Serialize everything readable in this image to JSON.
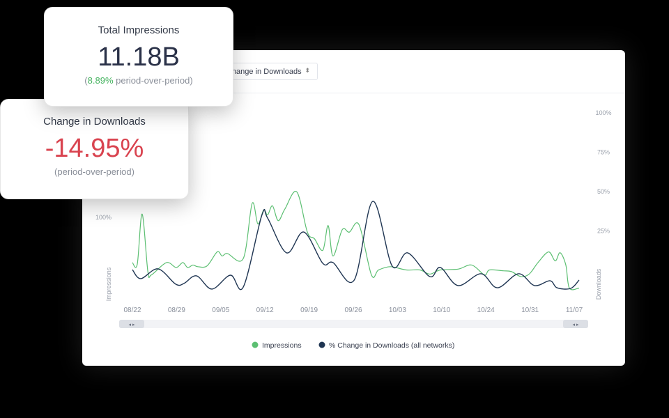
{
  "cards": [
    {
      "title": "Total Impressions",
      "value": "11.18B",
      "change": "8.89%",
      "suffix": " period-over-period)",
      "prefix": "("
    },
    {
      "title": "Change in Downloads",
      "value": "-14.95%",
      "subtitle": "(period-over-period)"
    }
  ],
  "dropdown": {
    "label": "Change in Downloads"
  },
  "colors": {
    "impressions": "#5cbf72",
    "downloads": "#1f3552",
    "negative": "#d9434f",
    "positive": "#45b35f"
  },
  "chart_data": {
    "type": "line",
    "x_ticks": [
      "08/22",
      "08/29",
      "09/05",
      "09/12",
      "09/19",
      "09/26",
      "10/03",
      "10/10",
      "10/24",
      "10/31",
      "11/07"
    ],
    "left_axis": {
      "label": "Impressions",
      "ticks": [
        "100%"
      ]
    },
    "right_axis": {
      "label": "Downloads",
      "ticks": [
        "100%",
        "75%",
        "50%",
        "25%"
      ],
      "ylim": [
        0,
        100
      ]
    },
    "legend": {
      "position": "bottom"
    },
    "grid": false,
    "series": [
      {
        "name": "Impressions",
        "axis": "left",
        "points": [
          [
            0,
            45
          ],
          [
            0.11,
            43
          ],
          [
            0.22,
            104
          ],
          [
            0.35,
            34
          ],
          [
            0.43,
            30
          ],
          [
            0.77,
            45
          ],
          [
            0.99,
            39
          ],
          [
            1.14,
            45
          ],
          [
            1.25,
            39
          ],
          [
            1.37,
            42
          ],
          [
            1.48,
            40
          ],
          [
            1.69,
            41
          ],
          [
            1.92,
            58
          ],
          [
            2.03,
            53
          ],
          [
            2.15,
            56
          ],
          [
            2.51,
            50
          ],
          [
            2.71,
            117
          ],
          [
            2.84,
            92
          ],
          [
            2.97,
            109
          ],
          [
            3.06,
            103
          ],
          [
            3.17,
            114
          ],
          [
            3.3,
            96
          ],
          [
            3.45,
            110
          ],
          [
            3.72,
            131
          ],
          [
            3.96,
            82
          ],
          [
            4.12,
            74
          ],
          [
            4.31,
            60
          ],
          [
            4.43,
            90
          ],
          [
            4.54,
            53
          ],
          [
            4.75,
            85
          ],
          [
            4.91,
            82
          ],
          [
            5.13,
            91
          ],
          [
            5.41,
            30
          ],
          [
            5.57,
            36
          ],
          [
            5.84,
            40
          ],
          [
            6.2,
            36
          ],
          [
            6.51,
            36
          ],
          [
            6.73,
            31
          ],
          [
            6.97,
            36
          ],
          [
            7.37,
            37
          ],
          [
            7.68,
            42
          ],
          [
            7.97,
            30
          ],
          [
            8.08,
            36
          ],
          [
            8.39,
            35
          ],
          [
            8.58,
            34
          ],
          [
            8.79,
            28
          ],
          [
            8.98,
            31
          ],
          [
            9.18,
            45
          ],
          [
            9.42,
            58
          ],
          [
            9.57,
            47
          ],
          [
            9.68,
            57
          ],
          [
            9.81,
            42
          ],
          [
            9.89,
            14
          ],
          [
            10.11,
            14
          ]
        ]
      },
      {
        "name": "% Change in Downloads (all networks)",
        "axis": "right",
        "points": [
          [
            0,
            0.4
          ],
          [
            0.19,
            -5.3
          ],
          [
            0.58,
            0.9
          ],
          [
            0.98,
            -8.8
          ],
          [
            1.17,
            -8.3
          ],
          [
            1.45,
            -3.5
          ],
          [
            1.8,
            -11.9
          ],
          [
            2.22,
            -3.1
          ],
          [
            2.51,
            -10.6
          ],
          [
            2.93,
            35
          ],
          [
            3.06,
            33.2
          ],
          [
            3.49,
            11.1
          ],
          [
            3.88,
            24.3
          ],
          [
            4.31,
            4.4
          ],
          [
            4.54,
            4.9
          ],
          [
            5.02,
            -6.2
          ],
          [
            5.44,
            43.8
          ],
          [
            5.88,
            2.7
          ],
          [
            6.23,
            11.1
          ],
          [
            6.73,
            -4
          ],
          [
            6.97,
            1.8
          ],
          [
            7.37,
            -9.7
          ],
          [
            7.89,
            -2.2
          ],
          [
            8.26,
            -11.1
          ],
          [
            8.74,
            -2.2
          ],
          [
            9.1,
            -9.7
          ],
          [
            9.45,
            -6.6
          ],
          [
            9.61,
            -11.1
          ],
          [
            9.92,
            -11.5
          ],
          [
            10.11,
            -6.2
          ]
        ]
      }
    ]
  }
}
